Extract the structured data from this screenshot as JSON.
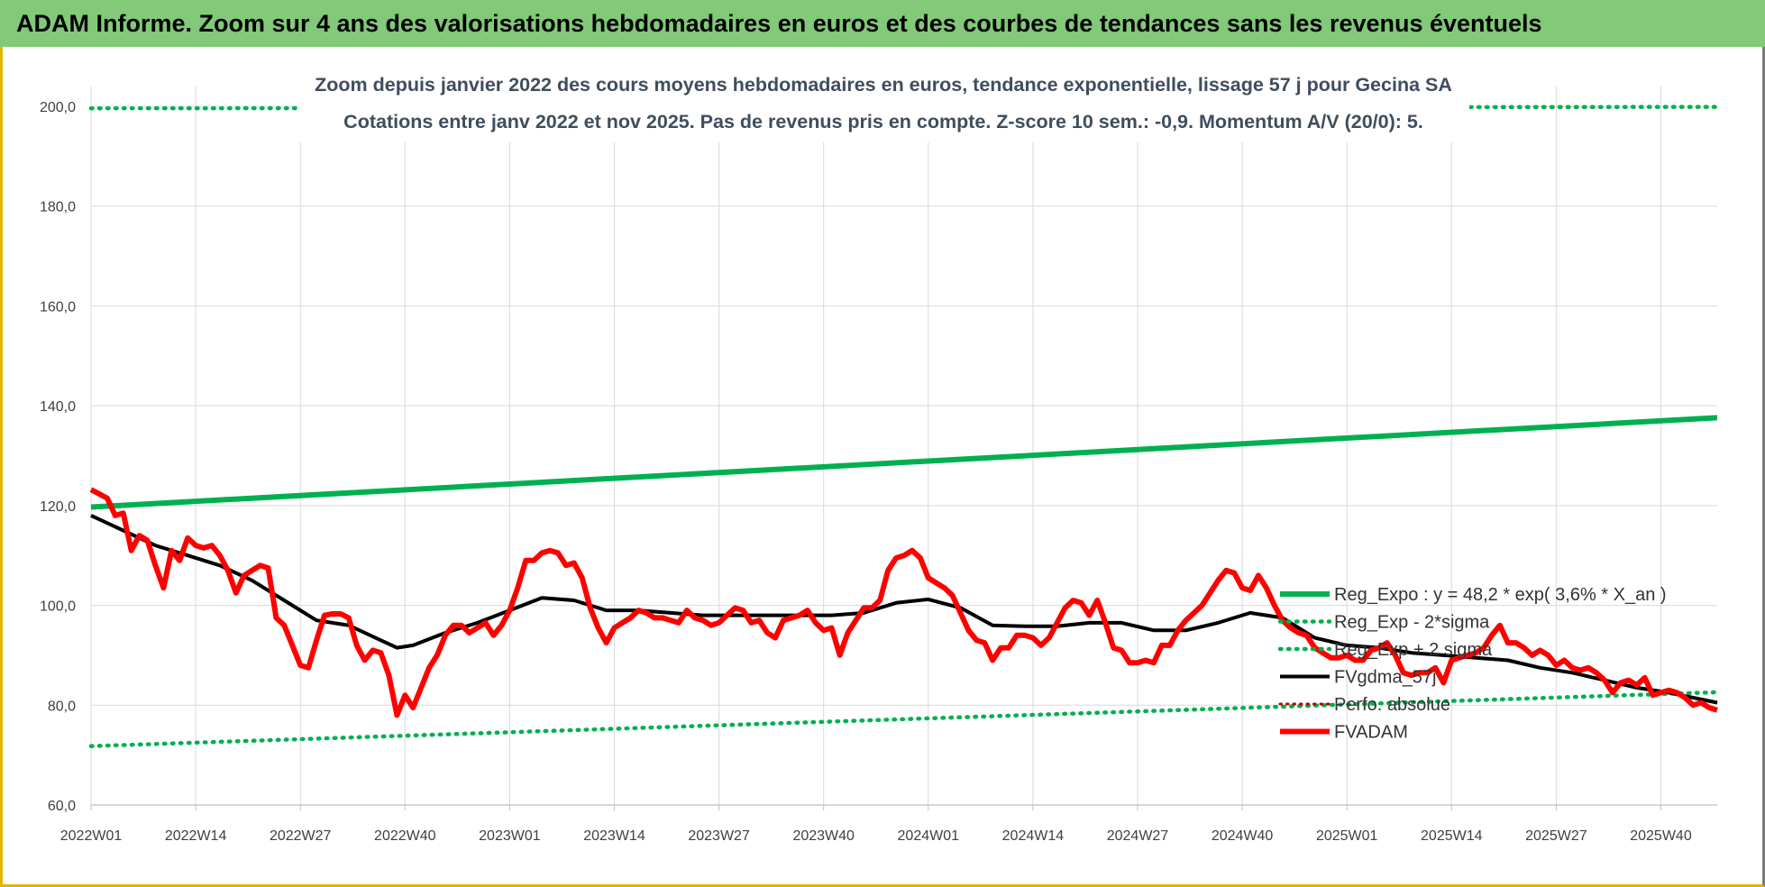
{
  "header": {
    "title": "ADAM Informe. Zoom sur 4 ans des valorisations hebdomadaires en euros et des courbes de tendances sans les revenus éventuels"
  },
  "colors": {
    "header_bg": "#82c97a",
    "reg_expo": "#00b050",
    "band": "#00b050",
    "fvgdma": "#000000",
    "perfo": "#c00000",
    "fvadam": "#ff0000",
    "grid": "#d9d9d9",
    "frame_accent": "#e2b400"
  },
  "chart_data": {
    "type": "line",
    "title_lines": [
      "Zoom depuis janvier 2022 des cours moyens hebdomadaires en euros, tendance exponentielle, lissage 57 j pour Gecina SA",
      "Cotations entre janv 2022 et nov 2025. Pas de revenus pris en compte. Z-score 10 sem.: -0,9. Momentum A/V (20/0): 5."
    ],
    "xlabel": "",
    "ylabel": "",
    "ylim": [
      60,
      200
    ],
    "yticks": [
      60,
      80,
      100,
      120,
      140,
      160,
      180,
      200
    ],
    "ytick_labels": [
      "60,0",
      "80,0",
      "100,0",
      "120,0",
      "140,0",
      "160,0",
      "180,0",
      "200,0"
    ],
    "xlim": [
      0,
      202
    ],
    "xticks": [
      0,
      13,
      26,
      39,
      52,
      65,
      78,
      91,
      104,
      117,
      130,
      143,
      156,
      169,
      182,
      195
    ],
    "xtick_labels": [
      "2022W01",
      "2022W14",
      "2022W27",
      "2022W40",
      "2023W01",
      "2023W14",
      "2023W27",
      "2023W40",
      "2024W01",
      "2024W14",
      "2024W27",
      "2024W40",
      "2025W01",
      "2025W14",
      "2025W27",
      "2025W40"
    ],
    "grid": true,
    "legend_position": "right",
    "series": [
      {
        "name": "Reg_Expo : y = 48,2 * exp( 3,6% *  X_an )",
        "style": "solid-thick",
        "x": [
          0,
          202
        ],
        "values": [
          119.7,
          137.6
        ]
      },
      {
        "name": "Reg_Exp - 2*sigma",
        "style": "dotted",
        "x": [
          0,
          202
        ],
        "values": [
          71.8,
          82.6
        ]
      },
      {
        "name": "Reg_Exp + 2 sigma",
        "style": "dotted",
        "x": [
          0,
          202
        ],
        "values": [
          199.6,
          199.9
        ]
      },
      {
        "name": "FVgdma_57j",
        "style": "solid",
        "x": [
          0,
          4,
          8,
          12,
          16,
          20,
          24,
          28,
          32,
          36,
          38,
          40,
          44,
          48,
          52,
          56,
          60,
          64,
          68,
          72,
          76,
          80,
          84,
          88,
          92,
          96,
          100,
          104,
          108,
          112,
          116,
          120,
          124,
          128,
          132,
          136,
          140,
          144,
          148,
          152,
          156,
          160,
          164,
          168,
          172,
          176,
          180,
          184,
          188,
          192,
          196,
          202
        ],
        "values": [
          118,
          115,
          112,
          110,
          108,
          105,
          101,
          97,
          96,
          93,
          91.5,
          92,
          94.5,
          96.5,
          99,
          101.5,
          101,
          99,
          99,
          98.5,
          98,
          98,
          98,
          98,
          98,
          98.5,
          100.5,
          101.2,
          99.5,
          96,
          95.8,
          95.8,
          96.5,
          96.5,
          95,
          95,
          96.5,
          98.5,
          97.5,
          93.5,
          92,
          91.5,
          90.5,
          90,
          89.5,
          89,
          87.5,
          86.5,
          85,
          83.5,
          82.5,
          80.5
        ]
      },
      {
        "name": "Perfo. absolue",
        "style": "dotted",
        "x": [],
        "values": []
      },
      {
        "name": "FVADAM",
        "style": "solid-thick",
        "x": [
          0,
          2,
          3,
          4,
          5,
          6,
          7,
          8,
          9,
          10,
          11,
          12,
          13,
          14,
          15,
          16,
          17,
          18,
          19,
          20,
          21,
          22,
          23,
          24,
          25,
          26,
          27,
          28,
          29,
          30,
          31,
          32,
          33,
          34,
          35,
          36,
          37,
          38,
          39,
          40,
          41,
          42,
          43,
          44,
          45,
          46,
          47,
          48,
          49,
          50,
          51,
          52,
          53,
          54,
          55,
          56,
          57,
          58,
          59,
          60,
          61,
          62,
          63,
          64,
          65,
          66,
          67,
          68,
          69,
          70,
          71,
          72,
          73,
          74,
          75,
          76,
          77,
          78,
          79,
          80,
          81,
          82,
          83,
          84,
          85,
          86,
          87,
          88,
          89,
          90,
          91,
          92,
          93,
          94,
          95,
          96,
          97,
          98,
          99,
          100,
          101,
          102,
          103,
          104,
          105,
          106,
          107,
          108,
          109,
          110,
          111,
          112,
          113,
          114,
          115,
          116,
          117,
          118,
          119,
          120,
          121,
          122,
          123,
          124,
          125,
          126,
          127,
          128,
          129,
          130,
          131,
          132,
          133,
          134,
          135,
          136,
          137,
          138,
          139,
          140,
          141,
          142,
          143,
          144,
          145,
          146,
          147,
          148,
          149,
          150,
          151,
          152,
          153,
          154,
          155,
          156,
          157,
          158,
          159,
          160,
          161,
          162,
          163,
          164,
          165,
          166,
          167,
          168,
          169,
          170,
          171,
          172,
          173,
          174,
          175,
          176,
          177,
          178,
          179,
          180,
          181,
          182,
          183,
          184,
          185,
          186,
          187,
          188,
          189,
          190,
          191,
          192,
          193,
          194,
          195,
          196,
          197,
          198,
          199,
          200,
          201,
          202
        ],
        "values": [
          123.2,
          121.5,
          118,
          118.5,
          111,
          114,
          113,
          108,
          103.5,
          111,
          109,
          113.5,
          112,
          111.5,
          112,
          110,
          107,
          102.5,
          106,
          107,
          108,
          107.5,
          97.5,
          96,
          92,
          88,
          87.5,
          93,
          98,
          98.3,
          98.3,
          97.5,
          92,
          89,
          91,
          90.5,
          86,
          78,
          82,
          79.5,
          83.5,
          87.5,
          90,
          94,
          96,
          96,
          94.5,
          95.5,
          96.5,
          94,
          96,
          99,
          103.5,
          109,
          109,
          110.5,
          111,
          110.5,
          108,
          108.5,
          105.5,
          99.5,
          95.5,
          92.5,
          95.5,
          96.5,
          97.5,
          99,
          98.5,
          97.5,
          97.5,
          97,
          96.5,
          99,
          97.5,
          97,
          96,
          96.5,
          98,
          99.5,
          99,
          96.5,
          97,
          94.5,
          93.5,
          97,
          97.5,
          98,
          99,
          96.5,
          95,
          95.5,
          90,
          94.5,
          97,
          99.5,
          99.5,
          101,
          107,
          109.5,
          110,
          111,
          109.5,
          105.5,
          104.5,
          103.5,
          102,
          98.5,
          95,
          93,
          92.5,
          89,
          91.5,
          91.5,
          94,
          94,
          93.5,
          92,
          93.5,
          96.5,
          99.5,
          101,
          100.5,
          98,
          101,
          96.5,
          91.5,
          91,
          88.5,
          88.5,
          89,
          88.5,
          92,
          92,
          95,
          97,
          98.5,
          100,
          102.5,
          105,
          107,
          106.5,
          103.5,
          103,
          106,
          103.5,
          100,
          97,
          95.5,
          94.5,
          94,
          91.5,
          90.5,
          89.5,
          89.5,
          90,
          89,
          89,
          91,
          91.5,
          92.5,
          90,
          86.5,
          86,
          86.5,
          86.5,
          87.5,
          84.5,
          89,
          89.5,
          90,
          90.5,
          91.5,
          94,
          96,
          92.5,
          92.5,
          91.5,
          90,
          91,
          90,
          88,
          89,
          87.5,
          87,
          87.5,
          86.5,
          85,
          82.5,
          84.5,
          85,
          84,
          85.5,
          82,
          82.5,
          83,
          82.5,
          81.5,
          80,
          80.5,
          79.5,
          79
        ]
      }
    ]
  }
}
